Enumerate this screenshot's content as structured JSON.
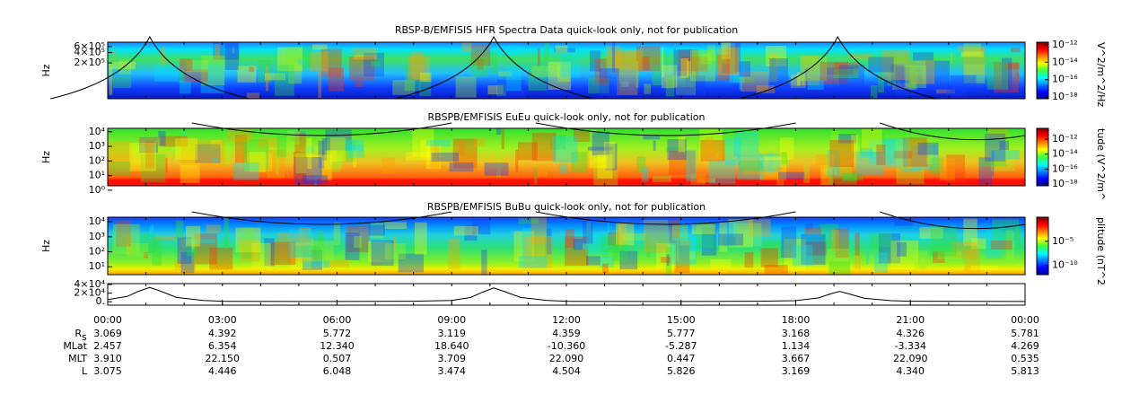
{
  "chart_data": [
    {
      "type": "spectrogram",
      "title": "RBSP-B/EMFISIS  HFR Spectra Data quick-look only, not for publication",
      "ylabel": "Hz",
      "yscale": "log",
      "ylim": [
        18000,
        800000
      ],
      "yticks": [
        {
          "value": 200000,
          "label": "2×10⁵"
        },
        {
          "value": 400000,
          "label": "4×10⁵"
        },
        {
          "value": 600000,
          "label": "6×10⁵"
        }
      ],
      "colorbar_label": "V^2/m^2/Hz",
      "clim": [
        6.3e-19,
        2e-12
      ],
      "colorbar_ticks": [
        {
          "value": 1e-12,
          "label": "10⁻¹²"
        },
        {
          "value": 1e-14,
          "label": "10⁻¹⁴"
        },
        {
          "value": 1e-16,
          "label": "10⁻¹⁶"
        },
        {
          "value": 1e-18,
          "label": "10⁻¹⁸"
        }
      ]
    },
    {
      "type": "spectrogram",
      "title": "RBSPB/EMFISIS  EuEu quick-look only, not for publication",
      "ylabel": "Hz",
      "yscale": "log",
      "ylim": [
        2,
        17000
      ],
      "yticks": [
        {
          "value": 1,
          "label": "10⁰"
        },
        {
          "value": 10,
          "label": "10¹"
        },
        {
          "value": 100,
          "label": "10²"
        },
        {
          "value": 1000,
          "label": "10³"
        },
        {
          "value": 10000,
          "label": "10⁴"
        }
      ],
      "colorbar_label": "tude (V^2/m^",
      "clim": [
        5.8e-19,
        2.8e-11
      ],
      "colorbar_ticks": [
        {
          "value": 1e-12,
          "label": "10⁻¹²"
        },
        {
          "value": 1e-14,
          "label": "10⁻¹⁴"
        },
        {
          "value": 1e-16,
          "label": "10⁻¹⁶"
        },
        {
          "value": 1e-18,
          "label": "10⁻¹⁸"
        }
      ]
    },
    {
      "type": "spectrogram",
      "title": "RBSPB/EMFISIS  BuBu quick-look only, not for publication",
      "ylabel": "Hz",
      "yscale": "log",
      "ylim": [
        3,
        20000
      ],
      "yticks": [
        {
          "value": 10,
          "label": "10¹"
        },
        {
          "value": 100,
          "label": "10²"
        },
        {
          "value": 1000,
          "label": "10³"
        },
        {
          "value": 10000,
          "label": "10⁴"
        }
      ],
      "colorbar_label": "plitude (nT^2",
      "clim": [
        1.2e-12,
        1
      ],
      "colorbar_ticks": [
        {
          "value": 1e-05,
          "label": "10⁻⁵"
        },
        {
          "value": 1e-10,
          "label": "10⁻¹⁰"
        }
      ]
    },
    {
      "type": "line",
      "ylim": [
        -8000,
        42000
      ],
      "yticks": [
        {
          "value": 0,
          "label": "0."
        },
        {
          "value": 20000,
          "label": "2×10⁴"
        },
        {
          "value": 40000,
          "label": "4×10⁴"
        }
      ],
      "xlim": [
        0,
        24
      ],
      "xticks": [
        {
          "value": 0,
          "label": "00:00"
        },
        {
          "value": 3,
          "label": "03:00"
        },
        {
          "value": 6,
          "label": "06:00"
        },
        {
          "value": 9,
          "label": "09:00"
        },
        {
          "value": 12,
          "label": "12:00"
        },
        {
          "value": 15,
          "label": "15:00"
        },
        {
          "value": 18,
          "label": "18:00"
        },
        {
          "value": 21,
          "label": "21:00"
        },
        {
          "value": 24,
          "label": "00:00"
        }
      ],
      "color": "#000000",
      "x": [
        0,
        0.5,
        0.8,
        1.1,
        1.4,
        1.8,
        2.5,
        3,
        5,
        8,
        9,
        9.5,
        9.8,
        10.1,
        10.4,
        10.8,
        11.5,
        12,
        15,
        17,
        18,
        18.6,
        18.9,
        19.15,
        19.4,
        19.8,
        20.5,
        21,
        24
      ],
      "values": [
        5000,
        12000,
        24000,
        33000,
        24000,
        10000,
        3000,
        1000,
        500,
        1000,
        3000,
        10000,
        22000,
        32000,
        23000,
        10000,
        3000,
        1000,
        500,
        1000,
        2500,
        9000,
        18000,
        24000,
        18000,
        8000,
        2500,
        1000,
        500
      ]
    }
  ],
  "ephemeris": {
    "rows": [
      {
        "label": "R",
        "subscript": "s",
        "values": [
          "3.069",
          "4.392",
          "5.772",
          "3.119",
          "4.359",
          "5.777",
          "3.168",
          "4.326",
          "5.781"
        ]
      },
      {
        "label": "MLat",
        "values": [
          "2.457",
          "6.354",
          "12.340",
          "18.640",
          "-10.360",
          "-5.287",
          "1.134",
          "-3.334",
          "4.269"
        ]
      },
      {
        "label": "MLT",
        "values": [
          "3.910",
          "22.150",
          "0.507",
          "3.709",
          "22.090",
          "0.447",
          "3.667",
          "22.090",
          "0.535"
        ]
      },
      {
        "label": "L",
        "values": [
          "3.075",
          "4.446",
          "6.048",
          "3.474",
          "4.504",
          "5.826",
          "3.169",
          "4.340",
          "5.813"
        ]
      }
    ]
  }
}
